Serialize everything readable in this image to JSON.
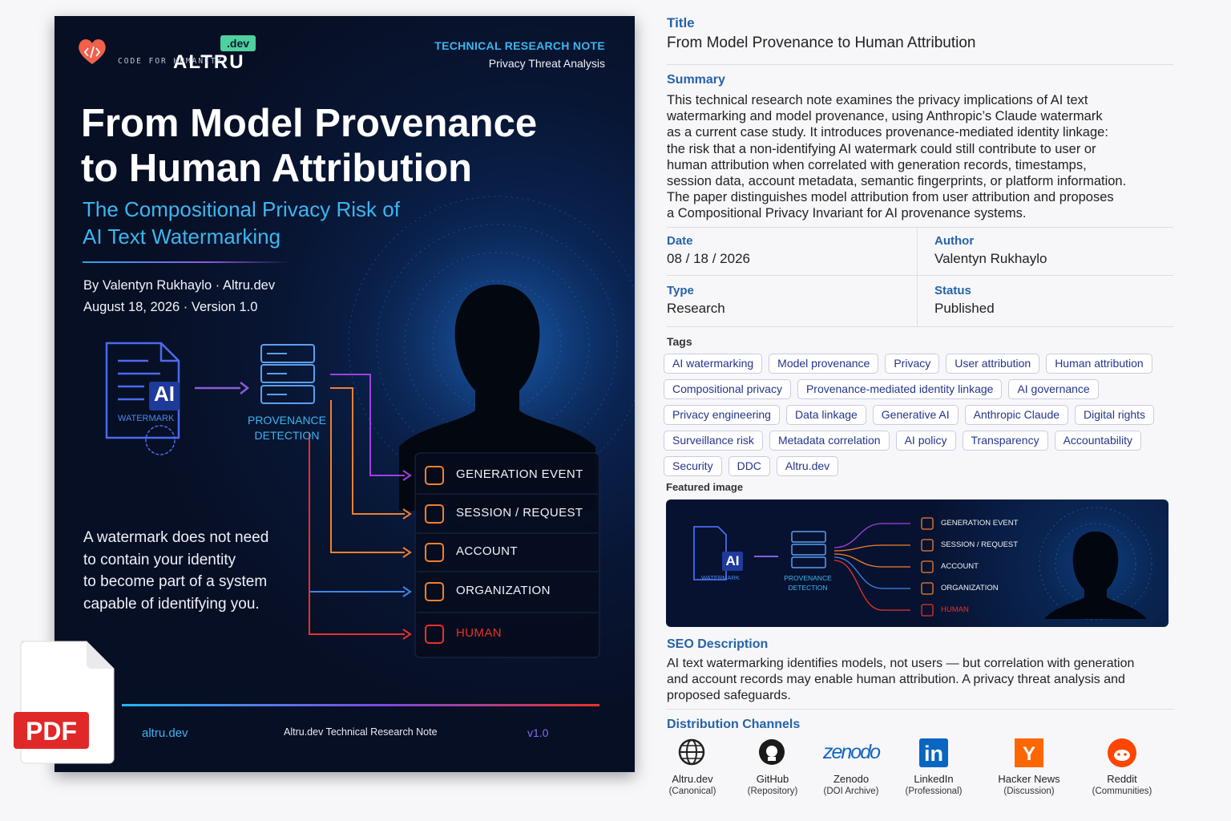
{
  "cover": {
    "brand": "ALTRU",
    "brand_badge": ".dev",
    "tagline": "CODE FOR HUMANITY",
    "label": "TECHNICAL RESEARCH NOTE",
    "sublabel": "Privacy Threat Analysis",
    "title_lines": [
      "From Model Provenance",
      "to Human Attribution"
    ],
    "subtitle_lines": [
      "The Compositional Privacy Risk of",
      "AI Text Watermarking"
    ],
    "byline": "By Valentyn Rukhaylo · Altru.dev",
    "dateline": "August 18, 2026 · Version 1.0",
    "diagram": {
      "doc_badge": "AI",
      "doc_label": "WATERMARK",
      "detector_lines": [
        "PROVENANCE",
        "DETECTION"
      ],
      "signals": [
        "GENERATION EVENT",
        "SESSION / REQUEST",
        "ACCOUNT",
        "ORGANIZATION",
        "HUMAN"
      ]
    },
    "quote_lines": [
      "A watermark does not need",
      "to contain your identity",
      "to become part of a system",
      "capable of identifying you."
    ],
    "footer": {
      "site": "altru.dev",
      "note": "Altru.dev Technical Research Note",
      "version": "v1.0"
    },
    "pdf_badge": "PDF"
  },
  "panel": {
    "title": {
      "label": "Title",
      "value": "From Model Provenance to Human Attribution"
    },
    "summary": {
      "label": "Summary",
      "lines": [
        "This technical research note examines the privacy implications of AI text",
        "watermarking and model provenance, using Anthropic’s Claude watermark",
        "as a current case study. It introduces provenance-mediated identity linkage:",
        "the risk that a non-identifying AI watermark could still contribute to user or",
        "human attribution when correlated with generation records, timestamps,",
        "session data, account metadata, semantic fingerprints, or platform information.",
        "The paper distinguishes model attribution from user attribution and proposes",
        "a Compositional Privacy Invariant for AI provenance systems."
      ]
    },
    "meta": [
      {
        "label": "Date",
        "value": "08 / 18 / 2026"
      },
      {
        "label": "Author",
        "value": "Valentyn Rukhaylo"
      },
      {
        "label": "Type",
        "value": "Research"
      },
      {
        "label": "Status",
        "value": "Published"
      }
    ],
    "tags": {
      "label": "Tags",
      "items": [
        "AI watermarking",
        "Model provenance",
        "Privacy",
        "User attribution",
        "Human attribution",
        "Compositional privacy",
        "Provenance-mediated identity linkage",
        "AI governance",
        "Privacy engineering",
        "Data linkage",
        "Generative AI",
        "Anthropic Claude",
        "Digital rights",
        "Surveillance risk",
        "Metadata correlation",
        "AI policy",
        "Transparency",
        "Accountability",
        "Security",
        "DDC",
        "Altru.dev"
      ]
    },
    "featured": {
      "label": "Featured image"
    },
    "seo": {
      "label": "SEO Description",
      "lines": [
        "AI text watermarking identifies models, not users — but correlation with generation",
        "and account records may enable human attribution. A privacy threat analysis and",
        "proposed safeguards."
      ]
    },
    "channels": {
      "label": "Distribution Channels",
      "items": [
        {
          "name": "Altru.dev",
          "role": "(Canonical)"
        },
        {
          "name": "GitHub",
          "role": "(Repository)"
        },
        {
          "name": "Zenodo",
          "role": "(DOI Archive)",
          "logo_text": "zenodo"
        },
        {
          "name": "LinkedIn",
          "role": "(Professional)",
          "logo_text": "in"
        },
        {
          "name": "Hacker News",
          "role": "(Discussion)",
          "logo_text": "Y"
        },
        {
          "name": "Reddit",
          "role": "(Communities)"
        }
      ]
    }
  }
}
